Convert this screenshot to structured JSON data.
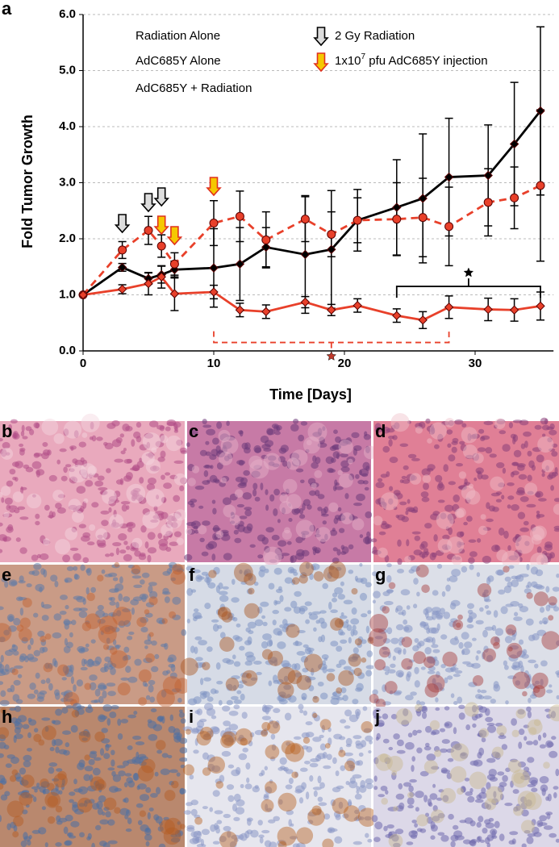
{
  "chart_data": {
    "type": "line",
    "panel_label": "a",
    "x_label": "Time [Days]",
    "y_label": "Fold Tumor Growth",
    "xlim": [
      0,
      36
    ],
    "xticks": [
      0,
      10,
      20,
      30
    ],
    "ylim": [
      0,
      6
    ],
    "yticks": [
      {
        "value": 0,
        "label": "0.0"
      },
      {
        "value": 1,
        "label": "1.0"
      },
      {
        "value": 2,
        "label": "2.0"
      },
      {
        "value": 3,
        "label": "3.0"
      },
      {
        "value": 4,
        "label": "4.0"
      },
      {
        "value": 5,
        "label": "5.0"
      },
      {
        "value": 6,
        "label": "6.0"
      }
    ],
    "grid": true,
    "x": [
      0,
      3,
      5,
      6,
      7,
      10,
      12,
      14,
      17,
      19,
      21,
      24,
      26,
      28,
      31,
      33,
      35
    ],
    "series": [
      {
        "name": "Radiation Alone",
        "color": "#000000",
        "dash": false,
        "marker": "diamond",
        "values": [
          1.0,
          1.49,
          1.29,
          1.36,
          1.45,
          1.48,
          1.55,
          1.85,
          1.72,
          1.81,
          2.33,
          2.56,
          2.72,
          3.1,
          3.13,
          3.69,
          4.28
        ],
        "errors": [
          0,
          0.07,
          0.1,
          0.15,
          0.15,
          0.7,
          0.65,
          0.35,
          1.05,
          1.05,
          0.55,
          0.85,
          1.15,
          1.05,
          0.9,
          1.1,
          1.5
        ]
      },
      {
        "name": "AdC685Y Alone",
        "color": "#e8402a",
        "dash": true,
        "marker": "circle",
        "values": [
          1.0,
          1.8,
          2.15,
          1.87,
          1.55,
          2.28,
          2.4,
          1.98,
          2.35,
          2.08,
          2.33,
          2.35,
          2.38,
          2.22,
          2.65,
          2.73,
          2.95
        ],
        "errors": [
          0,
          0.15,
          0.25,
          0.2,
          0.2,
          0.4,
          0.45,
          0.5,
          0.4,
          0.4,
          0.4,
          0.65,
          0.7,
          0.7,
          0.6,
          0.55,
          1.35
        ]
      },
      {
        "name": "AdC685Y + Radiation",
        "color": "#e8402a",
        "dash": false,
        "marker": "diamond",
        "values": [
          1.0,
          1.1,
          1.2,
          1.32,
          1.02,
          1.05,
          0.73,
          0.7,
          0.87,
          0.73,
          0.81,
          0.63,
          0.55,
          0.78,
          0.74,
          0.73,
          0.8
        ],
        "errors": [
          0,
          0.08,
          0.2,
          0.2,
          0.3,
          0.12,
          0.12,
          0.12,
          0.1,
          0.1,
          0.12,
          0.12,
          0.15,
          0.2,
          0.2,
          0.2,
          0.25
        ]
      }
    ],
    "radiation_label": "2 Gy Radiation",
    "radiation_days": [
      3,
      5,
      6
    ],
    "injection_label": {
      "before": "1x10",
      "superscript": "7",
      "after": " pfu AdC685Y injection"
    },
    "injection_days": [
      6,
      7,
      10
    ],
    "significance": [
      {
        "from": 24,
        "to": 35,
        "color": "#000000",
        "dash": false
      },
      {
        "from": 10,
        "to": 28,
        "color": "#e8402a",
        "dash": true
      }
    ]
  },
  "image_panels": [
    "b",
    "c",
    "d",
    "e",
    "f",
    "g",
    "h",
    "i",
    "j"
  ]
}
